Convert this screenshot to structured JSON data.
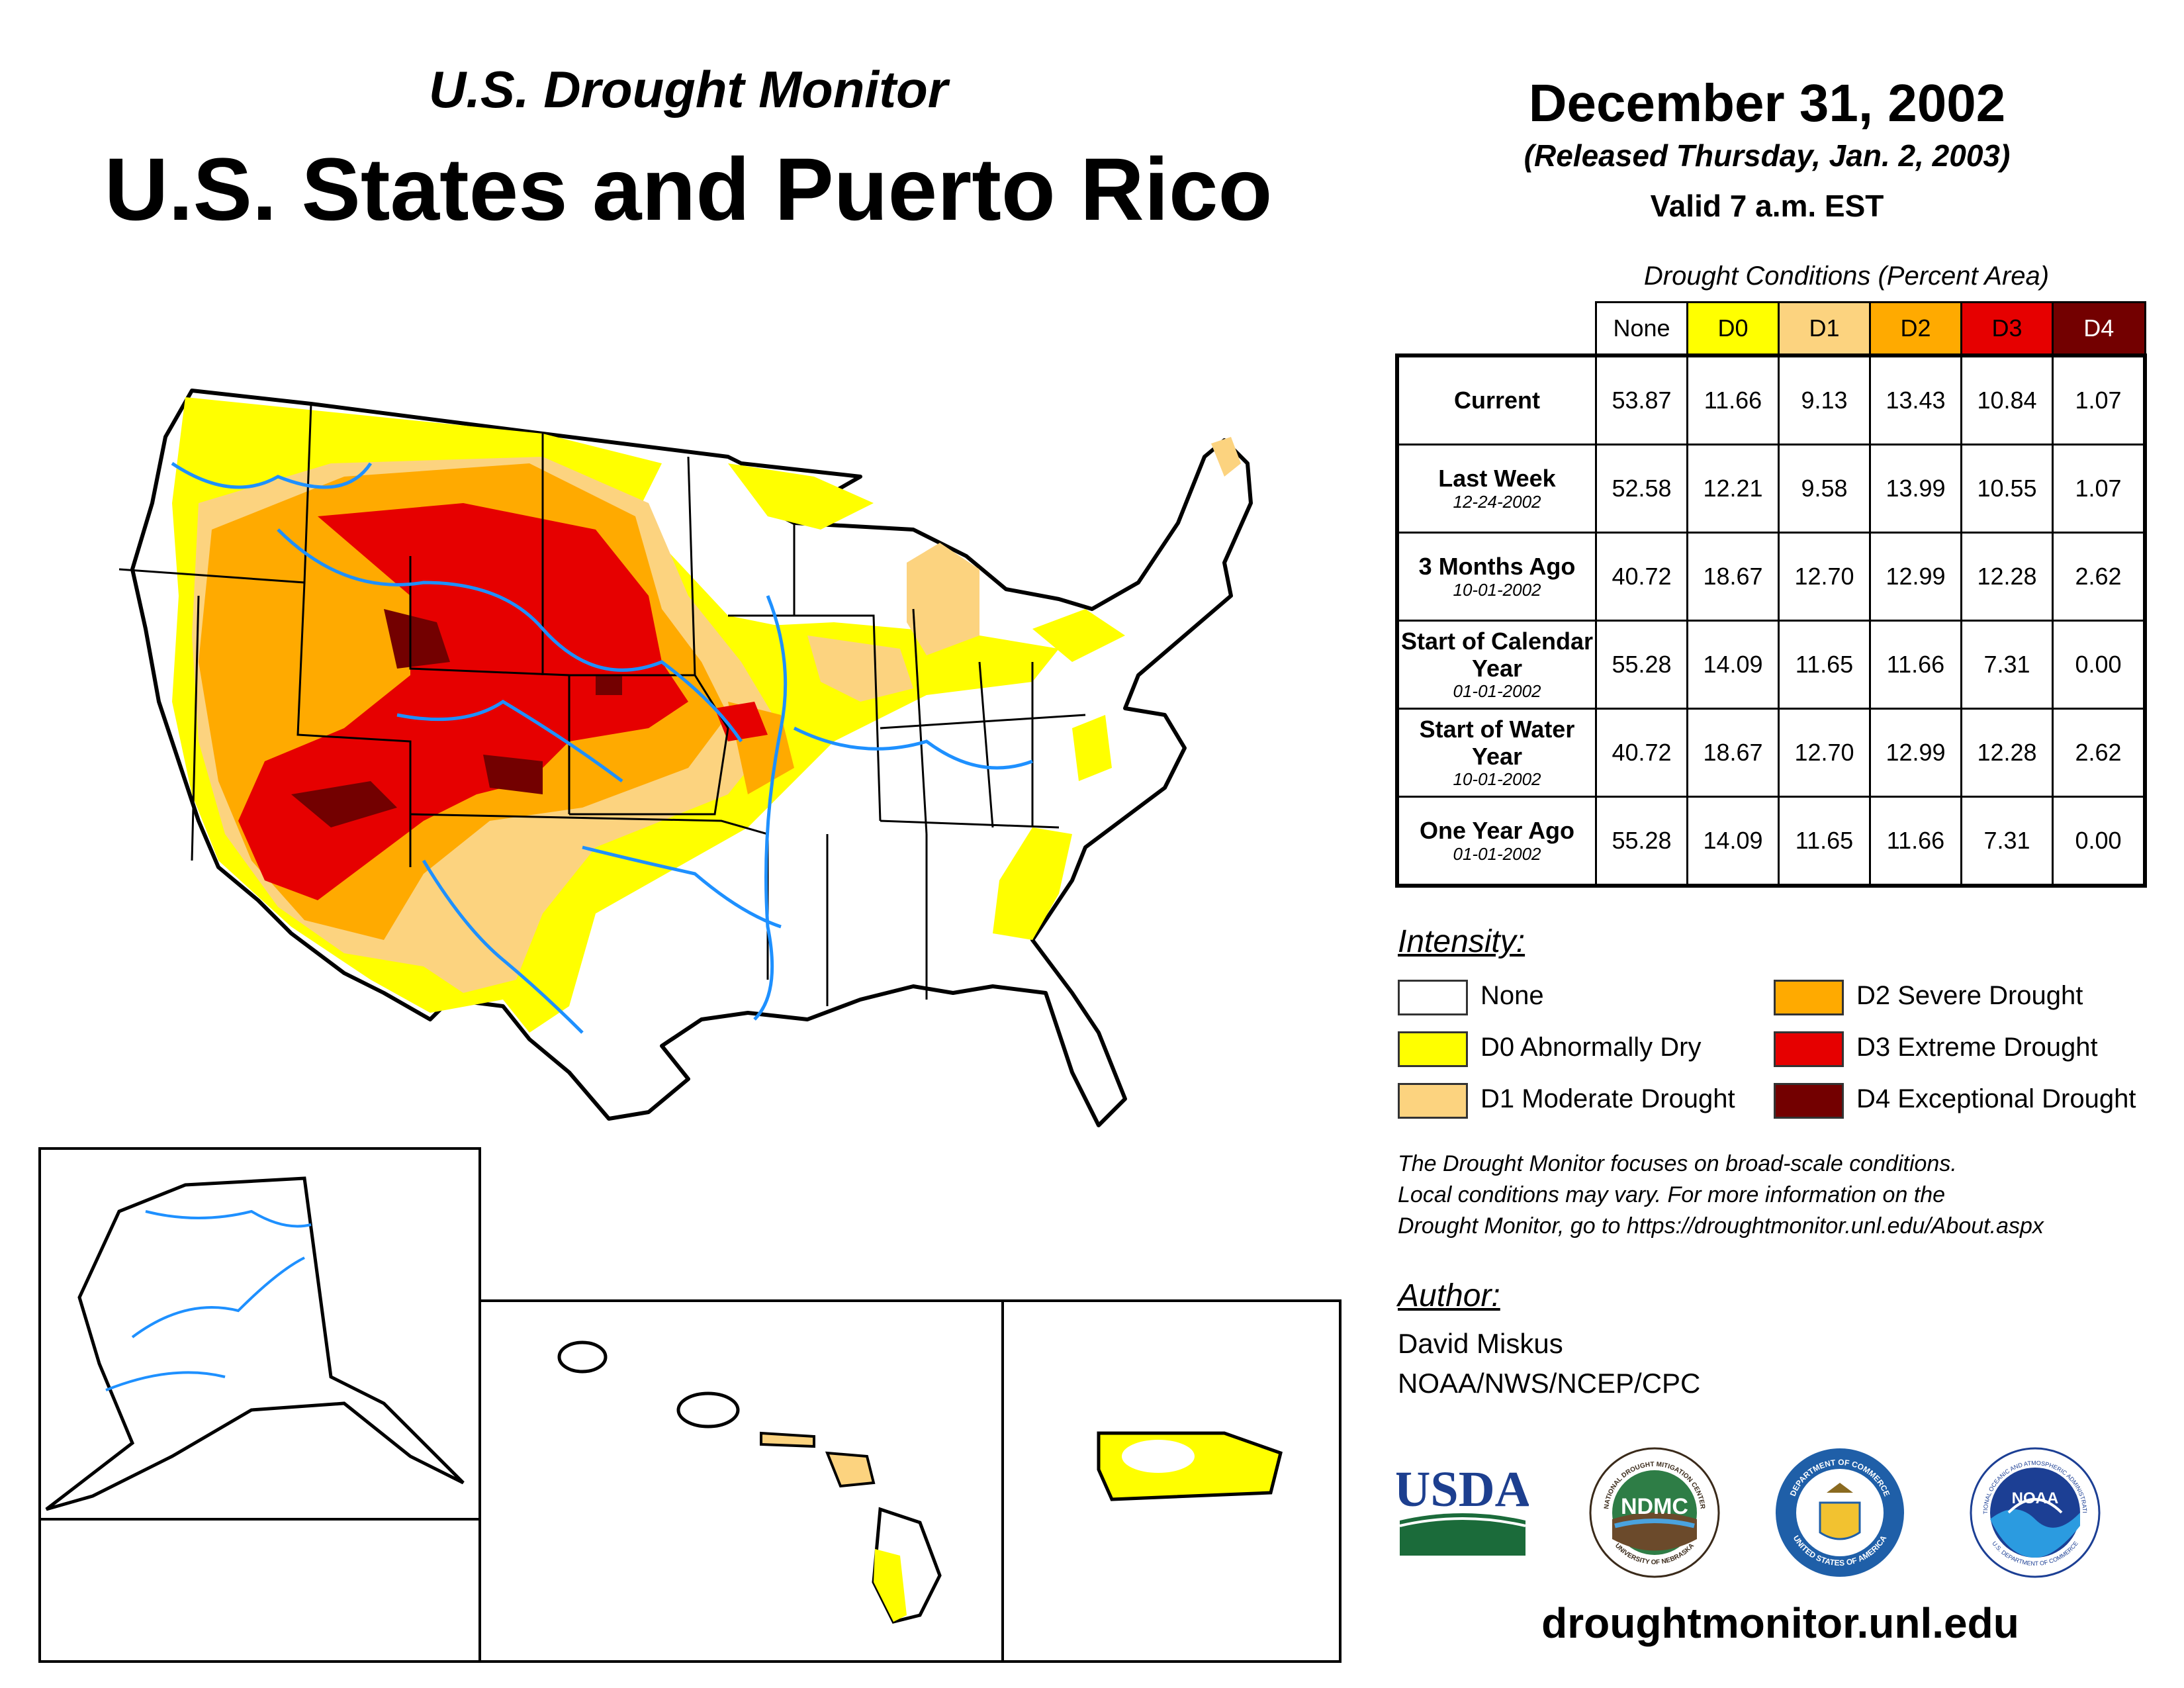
{
  "header": {
    "subtitle": "U.S. Drought Monitor",
    "title": "U.S. States and Puerto Rico",
    "date": "December 31, 2002",
    "released": "(Released Thursday, Jan. 2, 2003)",
    "valid": "Valid 7 a.m. EST"
  },
  "table": {
    "title": "Drought Conditions (Percent Area)",
    "columns": [
      "None",
      "D0",
      "D1",
      "D2",
      "D3",
      "D4"
    ],
    "column_colors": [
      "#ffffff",
      "#ffff00",
      "#fcd37f",
      "#ffaa00",
      "#e60000",
      "#730000"
    ],
    "rows": [
      {
        "label": "Current",
        "date": "",
        "values": [
          "53.87",
          "11.66",
          "9.13",
          "13.43",
          "10.84",
          "1.07"
        ]
      },
      {
        "label": "Last Week",
        "date": "12-24-2002",
        "values": [
          "52.58",
          "12.21",
          "9.58",
          "13.99",
          "10.55",
          "1.07"
        ]
      },
      {
        "label": "3 Months Ago",
        "date": "10-01-2002",
        "values": [
          "40.72",
          "18.67",
          "12.70",
          "12.99",
          "12.28",
          "2.62"
        ]
      },
      {
        "label": "Start of Calendar Year",
        "date": "01-01-2002",
        "values": [
          "55.28",
          "14.09",
          "11.65",
          "11.66",
          "7.31",
          "0.00"
        ]
      },
      {
        "label": "Start of Water Year",
        "date": "10-01-2002",
        "values": [
          "40.72",
          "18.67",
          "12.70",
          "12.99",
          "12.28",
          "2.62"
        ]
      },
      {
        "label": "One Year Ago",
        "date": "01-01-2002",
        "values": [
          "55.28",
          "14.09",
          "11.65",
          "11.66",
          "7.31",
          "0.00"
        ]
      }
    ]
  },
  "legend": {
    "title": "Intensity:",
    "items": [
      {
        "label": "None",
        "color": "#ffffff"
      },
      {
        "label": "D0 Abnormally Dry",
        "color": "#ffff00"
      },
      {
        "label": "D1 Moderate Drought",
        "color": "#fcd37f"
      },
      {
        "label": "D2 Severe Drought",
        "color": "#ffaa00"
      },
      {
        "label": "D3 Extreme Drought",
        "color": "#e60000"
      },
      {
        "label": "D4 Exceptional Drought",
        "color": "#730000"
      }
    ]
  },
  "note": {
    "line1": "The Drought Monitor focuses on broad-scale conditions.",
    "line2": "Local conditions may vary. For more information on the",
    "line3": "Drought Monitor, go to https://droughtmonitor.unl.edu/About.aspx"
  },
  "author": {
    "heading": "Author:",
    "name": "David Miskus",
    "org": "NOAA/NWS/NCEP/CPC"
  },
  "logos": {
    "usda": "USDA",
    "ndmc": "NDMC",
    "ndmc_ring_top": "NATIONAL DROUGHT MITIGATION CENTER",
    "ndmc_ring_bottom": "UNIVERSITY OF NEBRASKA",
    "doc_ring_top": "DEPARTMENT OF COMMERCE",
    "doc_ring_bottom": "UNITED STATES OF AMERICA",
    "noaa": "NOAA",
    "noaa_ring_top": "NATIONAL OCEANIC AND ATMOSPHERIC ADMINISTRATION",
    "noaa_ring_bottom": "U.S. DEPARTMENT OF COMMERCE"
  },
  "footer": {
    "url": "droughtmonitor.unl.edu"
  }
}
